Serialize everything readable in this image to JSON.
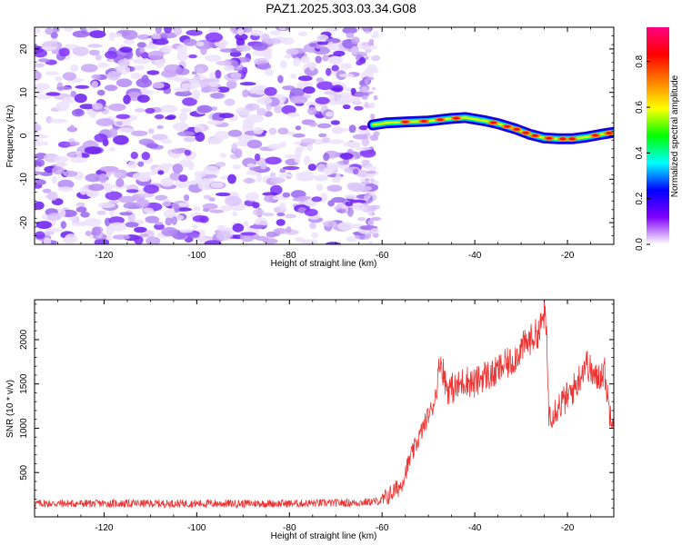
{
  "title": "PAZ1.2025.303.03.34.G08",
  "chart_data": [
    {
      "type": "heatmap",
      "name": "spectrogram",
      "xlabel": "Height of straight line (km)",
      "ylabel": "Frequency (Hz)",
      "xlim": [
        -135,
        -10
      ],
      "ylim": [
        -25,
        25
      ],
      "xticks": [
        -120,
        -100,
        -80,
        -60,
        -40,
        -20
      ],
      "yticks": [
        -20,
        -10,
        0,
        10,
        20
      ],
      "ytick_labels": [
        "-20",
        "-10",
        "0",
        "10",
        "20"
      ],
      "noise_region_km": [
        -135,
        -62
      ],
      "signal_track": {
        "x": [
          -62,
          -59,
          -55,
          -50,
          -45,
          -42,
          -38,
          -35,
          -31,
          -28,
          -25,
          -22,
          -19,
          -16,
          -13,
          -10
        ],
        "y": [
          2.5,
          3,
          3.2,
          3.4,
          4,
          4.2,
          3.5,
          2.8,
          1.5,
          0.3,
          -0.5,
          -0.7,
          -0.7,
          -0.3,
          0.3,
          0.8
        ]
      },
      "colorbar": {
        "label": "Normalized spectral amplitude",
        "ticks": [
          0.0,
          0.2,
          0.4,
          0.6,
          0.8
        ],
        "tick_labels": [
          "0.0",
          "0.2",
          "0.4",
          "0.6",
          "0.8"
        ],
        "range": [
          0,
          0.95
        ],
        "colors": [
          "#ffffff",
          "#8000ff",
          "#0000ff",
          "#00ffff",
          "#00ff00",
          "#ffff00",
          "#ff8000",
          "#ff0000",
          "#ff0080"
        ]
      }
    },
    {
      "type": "line",
      "name": "snr",
      "xlabel": "Height of straight line (km)",
      "ylabel": "SNR (10 * v/v)",
      "xlim": [
        -135,
        -10
      ],
      "ylim": [
        0,
        2450
      ],
      "xticks": [
        -120,
        -100,
        -80,
        -60,
        -40,
        -20
      ],
      "yticks": [
        500,
        1000,
        1500,
        2000
      ],
      "color": "#ee3333",
      "series": [
        {
          "name": "SNR",
          "x": [
            -135,
            -120,
            -100,
            -80,
            -65,
            -60,
            -56,
            -54,
            -52,
            -50,
            -49,
            -48,
            -47.5,
            -46,
            -44,
            -42,
            -40,
            -38,
            -36,
            -34,
            -32,
            -30,
            -28,
            -26,
            -25,
            -24.5,
            -24,
            -22,
            -20,
            -18,
            -16,
            -14,
            -12,
            -11,
            -10
          ],
          "y": [
            150,
            150,
            150,
            150,
            160,
            180,
            350,
            650,
            900,
            1150,
            1250,
            1500,
            1800,
            1450,
            1450,
            1550,
            1500,
            1600,
            1600,
            1700,
            1750,
            1900,
            2000,
            2100,
            2300,
            2050,
            1150,
            1250,
            1350,
            1500,
            1750,
            1550,
            1650,
            1200,
            1150
          ]
        }
      ]
    }
  ]
}
